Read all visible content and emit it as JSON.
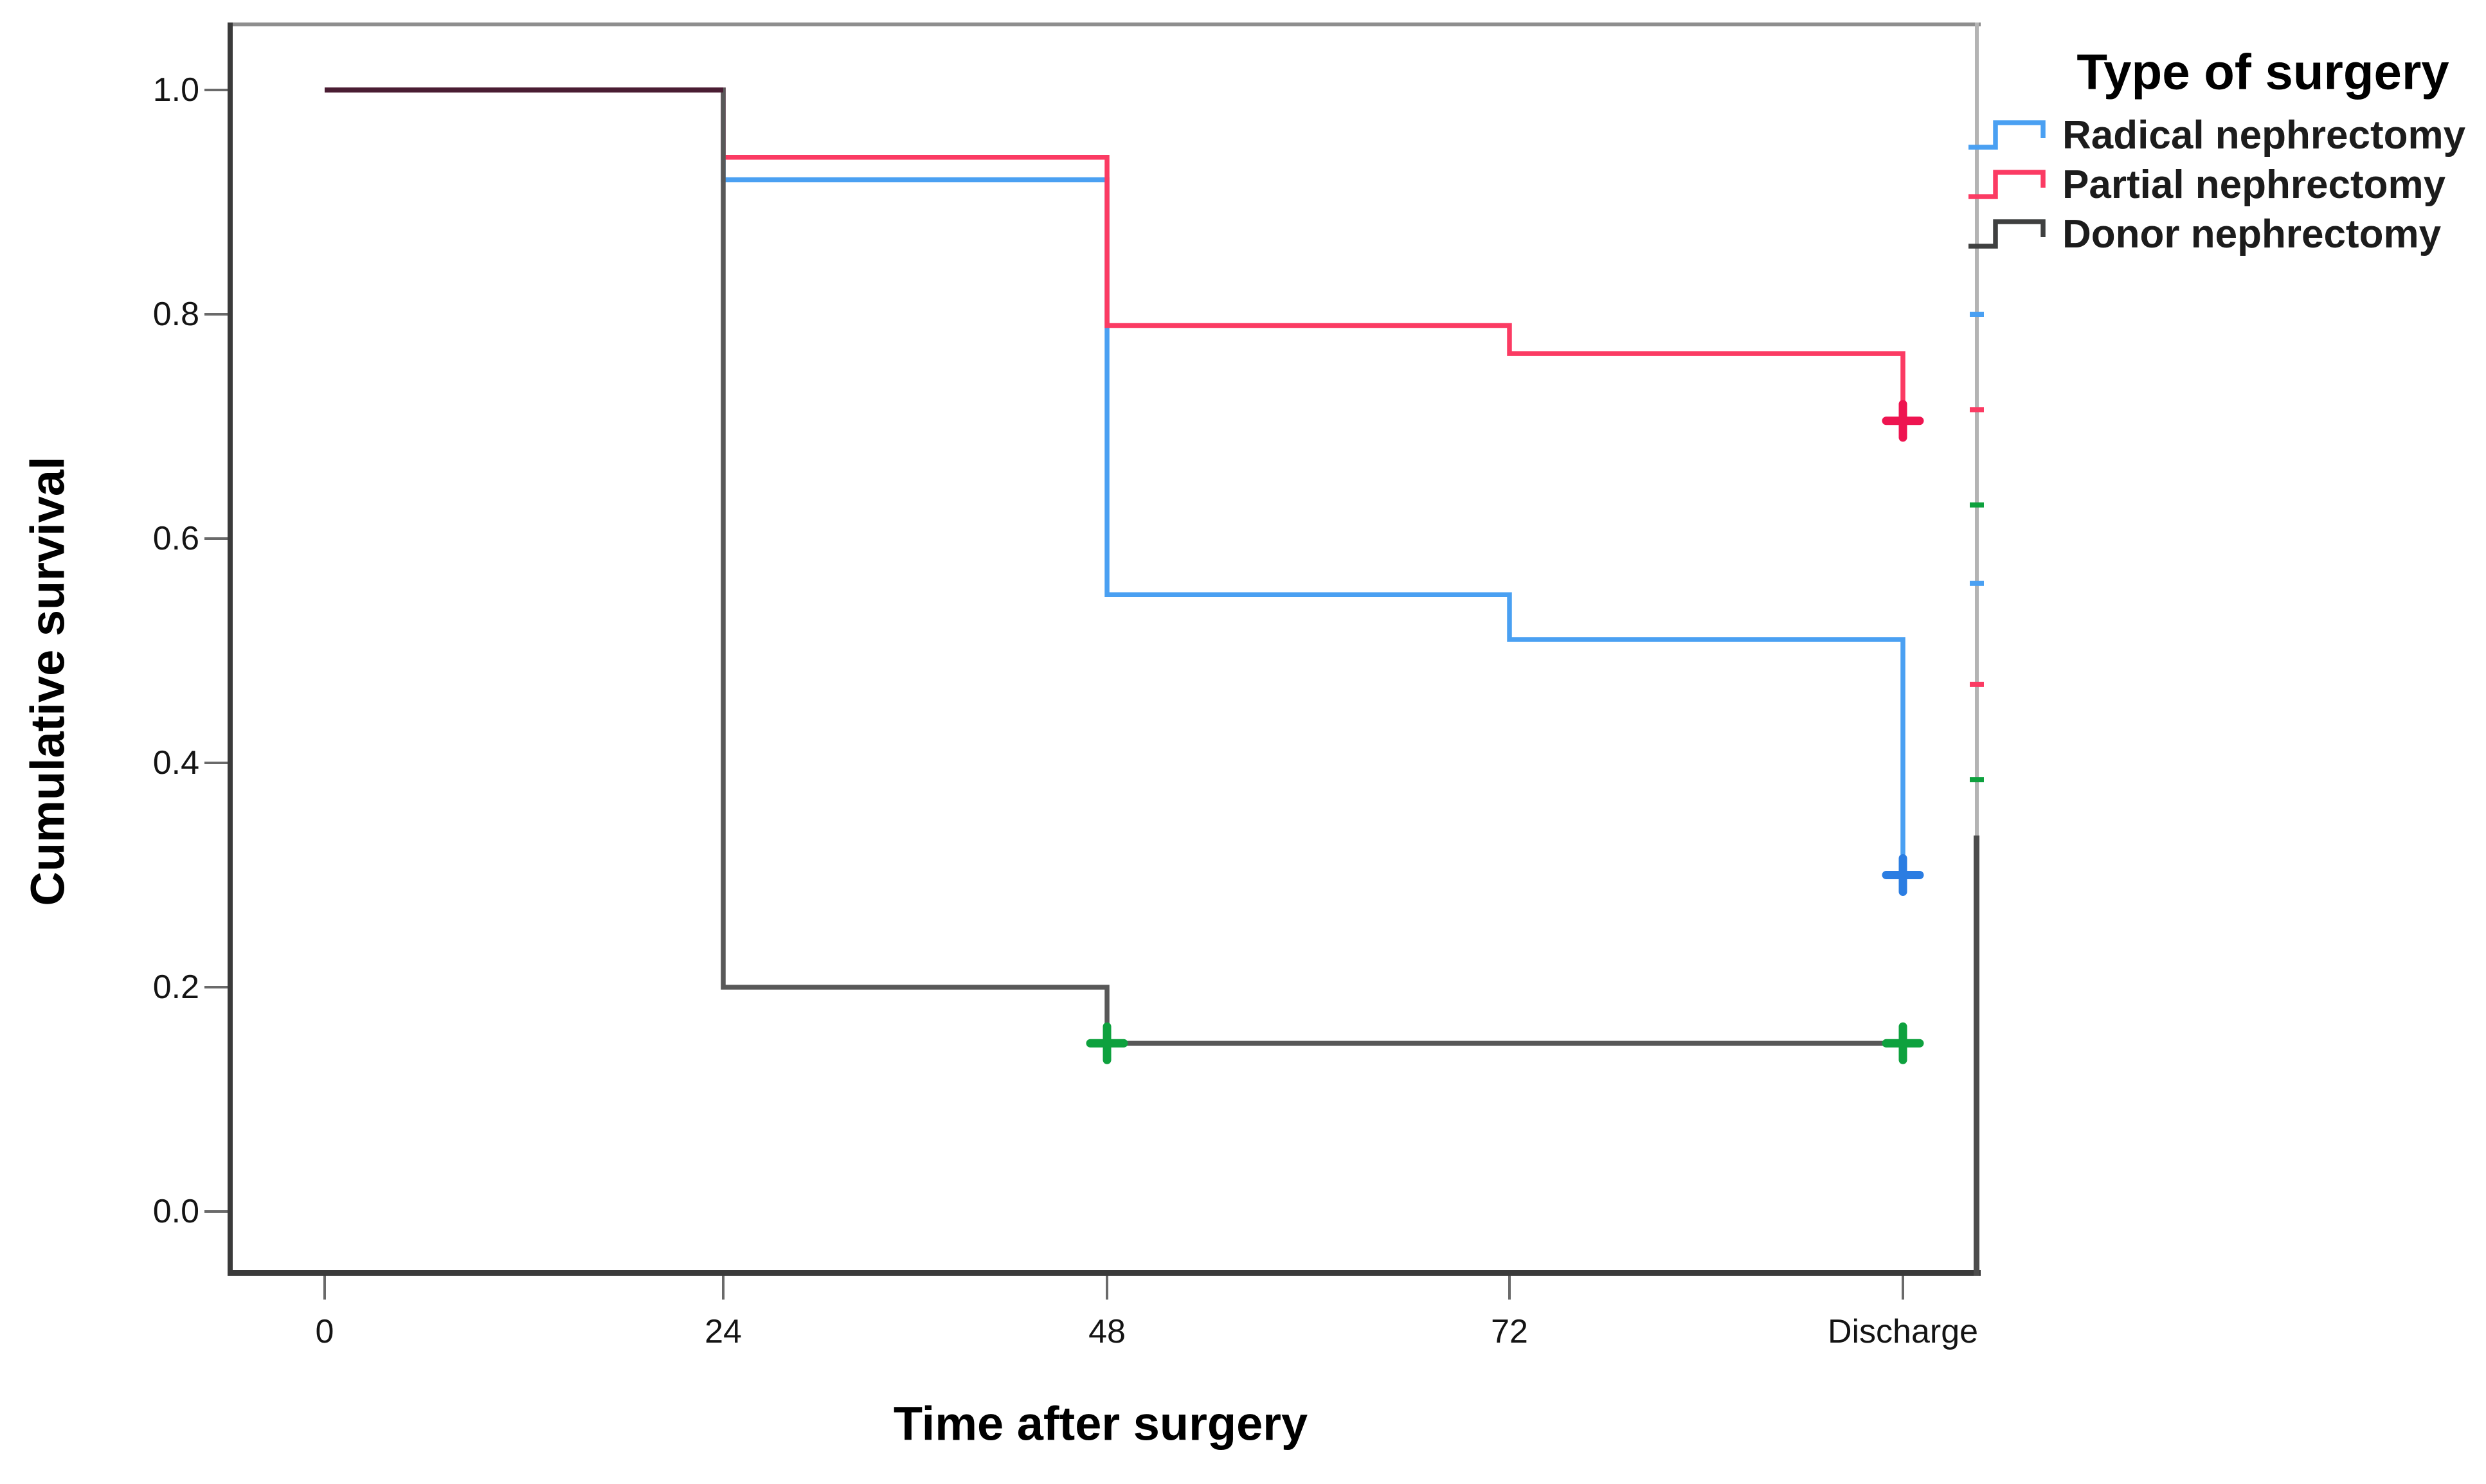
{
  "figure": {
    "y_axis_title": "Cumulative survival",
    "x_axis_title": "Time after surgery"
  },
  "legend": {
    "title": "Type of surgery",
    "entries": [
      {
        "label": "Radical nephrectomy",
        "color": "#4aa0f2"
      },
      {
        "label": "Partial nephrectomy",
        "color": "#fb3b63"
      },
      {
        "label": "Donor nephrectomy",
        "color": "#3f4040"
      }
    ]
  },
  "chart_data": {
    "type": "line",
    "subtype": "kaplan_meier_step",
    "title": "",
    "xlabel": "Time after surgery",
    "ylabel": "Cumulative survival",
    "x_tick_labels": [
      "0",
      "24",
      "48",
      "72",
      "Discharge"
    ],
    "y_tick_labels": [
      "1.0",
      "0.8",
      "0.6",
      "0.4",
      "0.2",
      "0.0"
    ],
    "y_ticks": [
      1.0,
      0.8,
      0.6,
      0.4,
      0.2,
      0.0
    ],
    "ylim": [
      0.0,
      1.0
    ],
    "grid": false,
    "legend_position": "top-right",
    "series": [
      {
        "name": "Radical nephrectomy",
        "color": "#4aa0f2",
        "censor_color": "#2b7de2",
        "values_at_ticks": [
          1.0,
          0.92,
          0.55,
          0.51,
          0.3
        ],
        "censored": [
          {
            "x": "Discharge",
            "y": 0.3
          }
        ]
      },
      {
        "name": "Partial nephrectomy",
        "color": "#fb3b63",
        "censor_color": "#ee1450",
        "values_at_ticks": [
          1.0,
          0.94,
          0.79,
          0.765,
          0.705
        ],
        "censored": [
          {
            "x": "Discharge",
            "y": 0.705
          }
        ]
      },
      {
        "name": "Donor nephrectomy",
        "color": "#585858",
        "censor_color": "#0ea13e",
        "values_at_ticks": [
          1.0,
          0.2,
          0.15,
          0.15,
          0.15
        ],
        "censored": [
          {
            "x": "48",
            "y": 0.15
          },
          {
            "x": "Discharge",
            "y": 0.15
          }
        ]
      }
    ],
    "overlap_segment": {
      "note": "all three curves overlap at 1.0 between x=0 and x=24",
      "color": "#4a1d33",
      "from_x": "0",
      "to_x": "24",
      "y": 1.0
    },
    "right_edge_marks": [
      {
        "y_value": 0.8,
        "color": "#4aa0f2"
      },
      {
        "y_value": 0.715,
        "color": "#fb3b63"
      },
      {
        "y_value": 0.63,
        "color": "#0ea13e"
      },
      {
        "y_value": 0.56,
        "color": "#4aa0f2"
      },
      {
        "y_value": 0.47,
        "color": "#fb3b63"
      },
      {
        "y_value": 0.385,
        "color": "#0ea13e"
      }
    ]
  }
}
